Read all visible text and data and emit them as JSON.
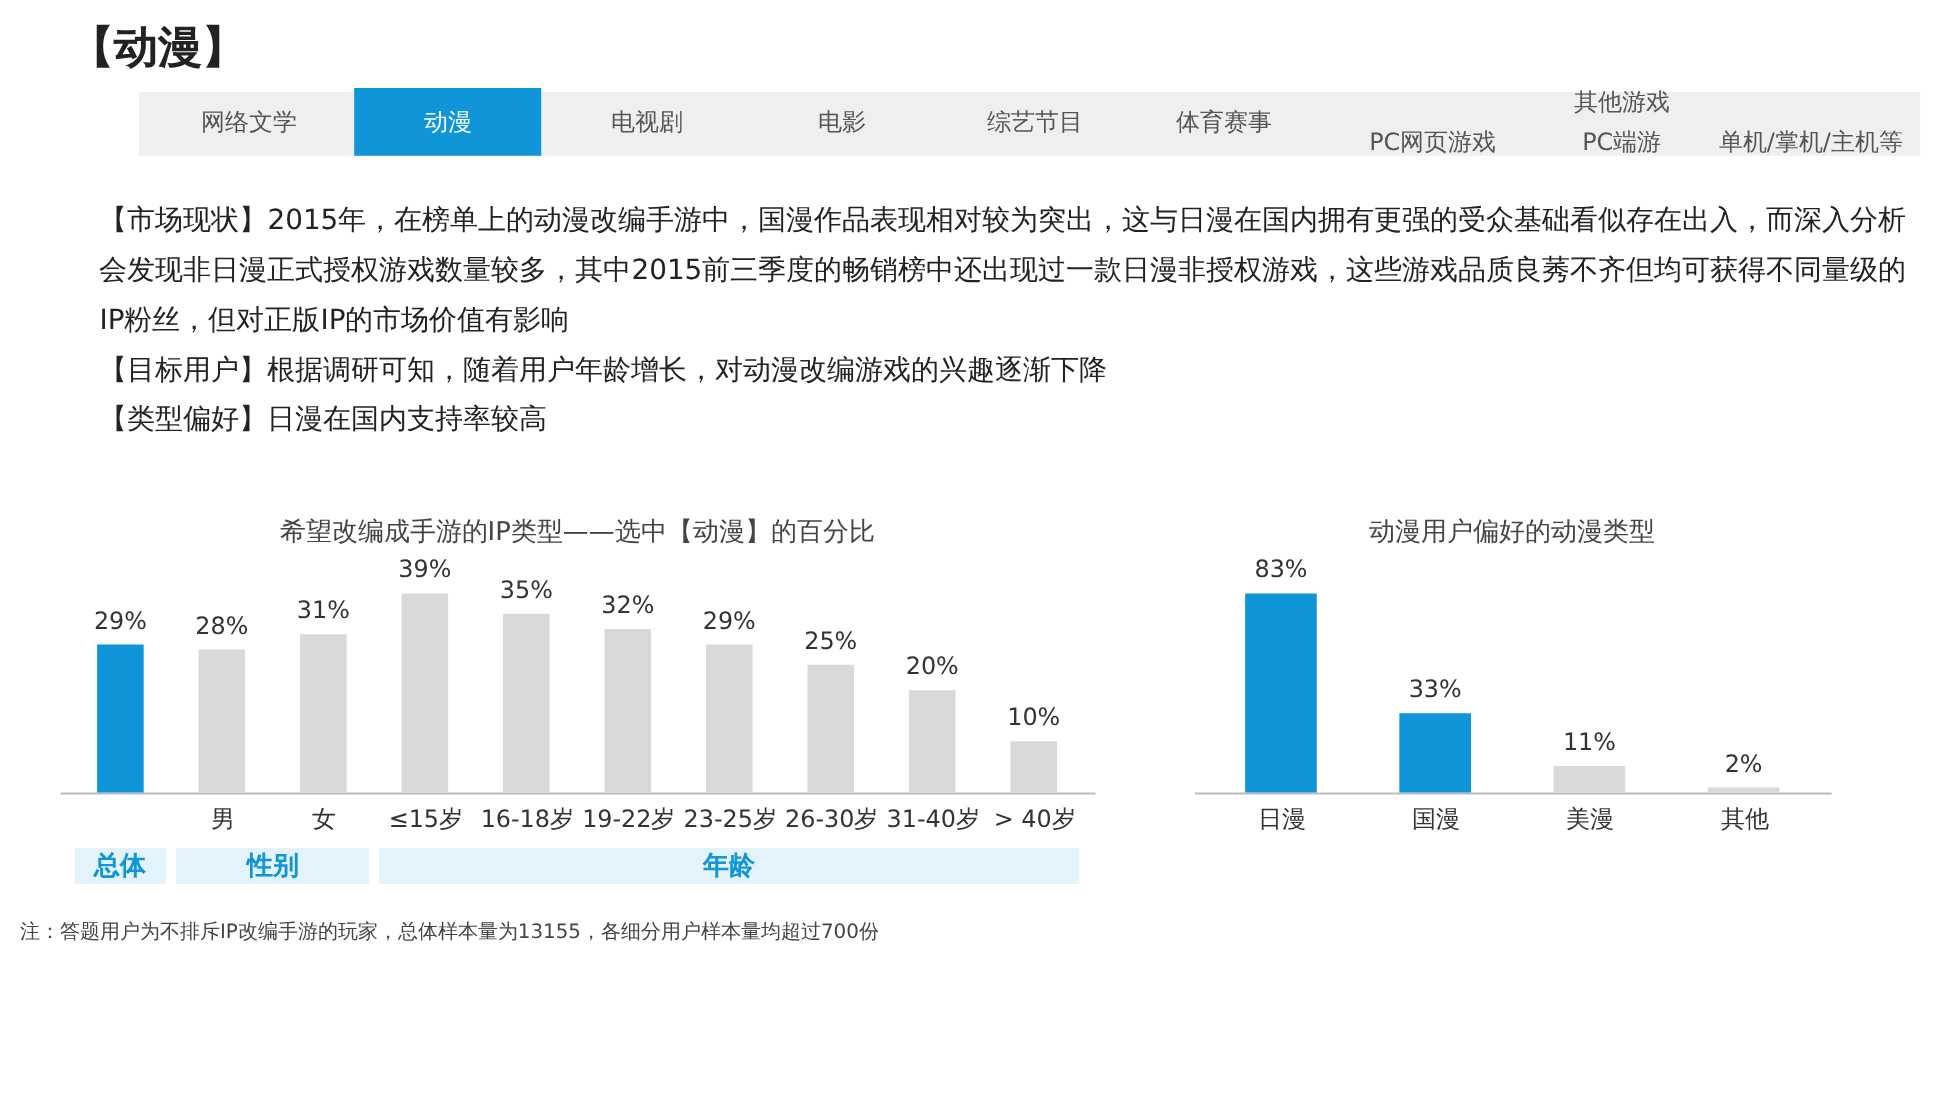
{
  "chart_data": [
    {
      "type": "other",
      "title": "【动漫】",
      "annotations": [
        "网络文学",
        "动漫",
        "电视剧",
        "电影",
        "综艺节目",
        "体育赛事",
        "其他游戏",
        "PC网页游戏",
        "PC端游",
        "单机/掌机/主机等",
        "【市场现状】2015年，在榜单上的动漫改编手游中，国漫作品表现相对较为突出，这与日漫在国内拥有更强的受众基础看似存在出入，而深入分析会发现非日漫正式授权游戏数量较多，其中2015前三季度的畅销榜中还出现过一款日漫非授权游戏，这些游戏品质良莠不齐但均可获得不同量级的IP粉丝，但对正版IP的市场价值有影响",
        "【目标用户】根据调研可知，随着用户年龄增长，对动漫改编游戏的兴趣逐渐下降",
        "【类型偏好】日漫在国内支持率较高"
      ]
    },
    {
      "type": "bar",
      "title": "希望改编成手游的IP类型——选中【动漫】的百分比",
      "categories": [
        null,
        "男",
        "女",
        "≤15岁",
        "16-18岁",
        "19-22岁",
        "23-25岁",
        "26-30岁",
        "31-40岁",
        "> 40岁"
      ],
      "values": [
        29,
        28,
        31,
        39,
        35,
        32,
        29,
        25,
        20,
        10
      ],
      "colors": [
        "#0f95d8",
        "#d9d9d9",
        "#d9d9d9",
        "#d9d9d9",
        "#d9d9d9",
        "#d9d9d9",
        "#d9d9d9",
        "#d9d9d9",
        "#d9d9d9",
        "#d9d9d9"
      ],
      "value_labels": [
        "29%",
        "28%",
        "31%",
        "39%",
        "35%",
        "32%",
        "29%",
        "25%",
        "20%",
        "10%"
      ],
      "annotations": [
        "总体",
        "性别",
        "年龄",
        "注：答题用户为不排斥IP改编手游的玩家，总体样本量为13155，各细分用户样本量均超过700份"
      ]
    },
    {
      "type": "bar",
      "title": "动漫用户偏好的动漫类型",
      "categories": [
        "日漫",
        "国漫",
        "美漫",
        "其他"
      ],
      "values": [
        83,
        33,
        11,
        2
      ],
      "colors": [
        "#0f95d8",
        "#0f95d8",
        "#d9d9d9",
        "#d9d9d9"
      ],
      "value_labels": [
        "83%",
        "33%",
        "11%",
        "2%"
      ]
    }
  ]
}
